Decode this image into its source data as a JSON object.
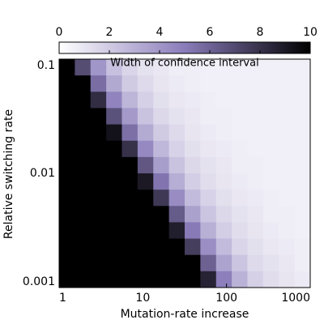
{
  "chart_data": {
    "type": "heatmap",
    "xlabel": "Mutation-rate increase",
    "ylabel": "Relative switching rate",
    "colorbar_label": "Width of confidence interval",
    "xlim": [
      1,
      1000
    ],
    "xticks": [
      1,
      10,
      100,
      1000
    ],
    "xscale": "log",
    "ylim": [
      0.001,
      0.1
    ],
    "yticks": [
      0.001,
      0.01,
      0.1
    ],
    "yscale": "log",
    "zlim": [
      0,
      10
    ],
    "zticks": [
      0,
      2,
      4,
      6,
      8,
      10
    ],
    "colormap": [
      "#ffffff",
      "#8a7cba",
      "#000000"
    ],
    "z": [
      [
        10,
        6.9,
        4.0,
        2.4,
        1.6,
        1.1,
        0.9,
        0.7,
        0.7,
        0.6,
        0.6,
        0.6,
        0.6,
        0.6,
        0.6,
        0.6
      ],
      [
        10,
        10,
        5.6,
        3.3,
        2.0,
        1.4,
        1.0,
        0.8,
        0.7,
        0.6,
        0.6,
        0.6,
        0.6,
        0.6,
        0.6,
        0.6
      ],
      [
        10,
        10,
        8.2,
        4.7,
        2.8,
        1.8,
        1.2,
        0.9,
        0.8,
        0.7,
        0.6,
        0.6,
        0.6,
        0.6,
        0.6,
        0.6
      ],
      [
        10,
        10,
        10,
        6.7,
        3.9,
        2.3,
        1.5,
        1.1,
        0.9,
        0.7,
        0.7,
        0.6,
        0.6,
        0.6,
        0.6,
        0.6
      ],
      [
        10,
        10,
        10,
        9.3,
        5.5,
        3.2,
        2.0,
        1.4,
        1.0,
        0.8,
        0.7,
        0.6,
        0.6,
        0.6,
        0.6,
        0.6
      ],
      [
        10,
        10,
        10,
        10,
        8.0,
        4.5,
        2.7,
        1.7,
        1.2,
        0.9,
        0.8,
        0.7,
        0.6,
        0.6,
        0.6,
        0.6
      ],
      [
        10,
        10,
        10,
        10,
        10,
        6.5,
        3.7,
        2.3,
        1.5,
        1.1,
        0.9,
        0.7,
        0.7,
        0.6,
        0.6,
        0.6
      ],
      [
        10,
        10,
        10,
        10,
        10,
        9.0,
        5.3,
        3.1,
        1.9,
        1.3,
        1.0,
        0.8,
        0.7,
        0.6,
        0.6,
        0.6
      ],
      [
        10,
        10,
        10,
        10,
        10,
        10,
        7.7,
        4.4,
        2.6,
        1.7,
        1.2,
        0.9,
        0.8,
        0.7,
        0.6,
        0.6
      ],
      [
        10,
        10,
        10,
        10,
        10,
        10,
        10,
        6.3,
        3.6,
        2.2,
        1.5,
        1.1,
        0.9,
        0.7,
        0.7,
        0.6
      ],
      [
        10,
        10,
        10,
        10,
        10,
        10,
        10,
        8.8,
        5.1,
        3.0,
        1.9,
        1.3,
        1.0,
        0.8,
        0.7,
        0.6
      ],
      [
        10,
        10,
        10,
        10,
        10,
        10,
        10,
        10,
        7.5,
        4.3,
        2.6,
        1.6,
        1.2,
        0.9,
        0.8,
        0.7
      ],
      [
        10,
        10,
        10,
        10,
        10,
        10,
        10,
        10,
        10,
        6.1,
        3.5,
        2.2,
        1.4,
        1.1,
        0.9,
        0.7
      ],
      [
        10,
        10,
        10,
        10,
        10,
        10,
        10,
        10,
        10,
        8.6,
        4.9,
        2.9,
        1.8,
        1.3,
        1.0,
        0.8
      ]
    ]
  }
}
